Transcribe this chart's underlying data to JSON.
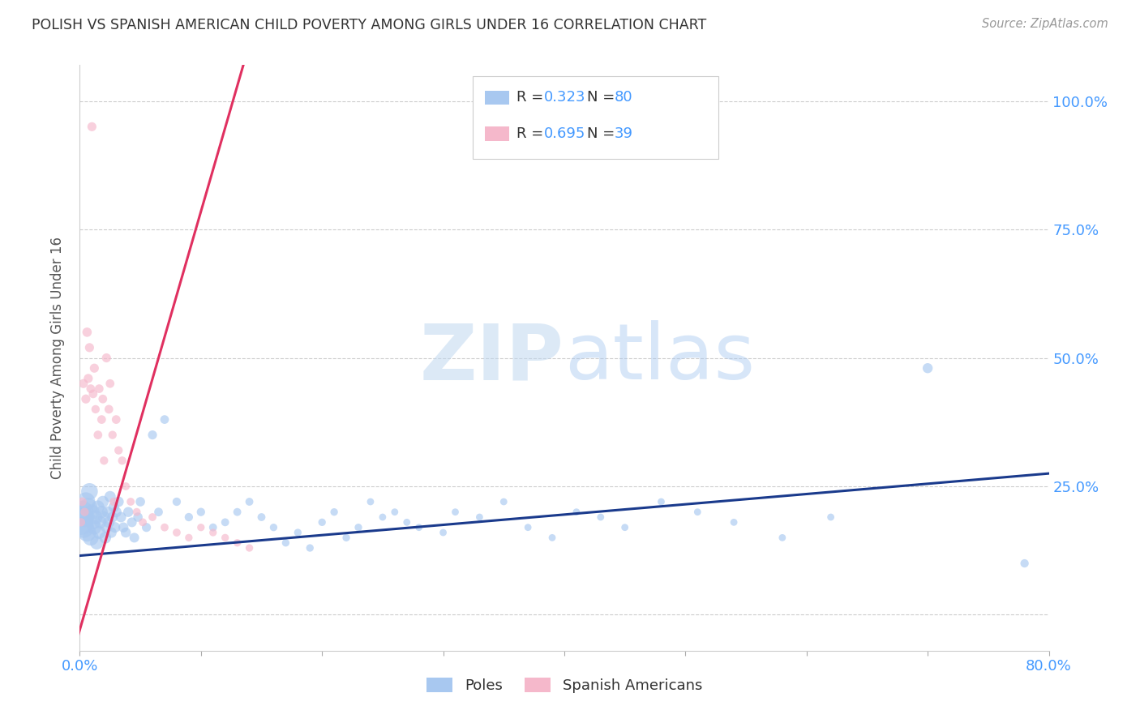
{
  "title": "POLISH VS SPANISH AMERICAN CHILD POVERTY AMONG GIRLS UNDER 16 CORRELATION CHART",
  "source": "Source: ZipAtlas.com",
  "ylabel_label": "Child Poverty Among Girls Under 16",
  "poles_R": "0.323",
  "poles_N": "80",
  "spanish_R": "0.695",
  "spanish_N": "39",
  "poles_color": "#a8c8f0",
  "poles_line_color": "#1a3a8c",
  "spanish_color": "#f5b8cb",
  "spanish_line_color": "#e03060",
  "watermark_zip": "ZIP",
  "watermark_atlas": "atlas",
  "background_color": "#ffffff",
  "xlim": [
    0.0,
    0.8
  ],
  "ylim": [
    -0.07,
    1.07
  ],
  "poles_trend_x": [
    0.0,
    0.8
  ],
  "poles_trend_y": [
    0.115,
    0.275
  ],
  "spanish_trend_x": [
    -0.005,
    0.135
  ],
  "spanish_trend_y": [
    -0.07,
    1.07
  ],
  "poles_scatter_x": [
    0.001,
    0.002,
    0.003,
    0.004,
    0.005,
    0.006,
    0.007,
    0.008,
    0.009,
    0.01,
    0.011,
    0.012,
    0.013,
    0.014,
    0.015,
    0.016,
    0.017,
    0.018,
    0.019,
    0.02,
    0.021,
    0.022,
    0.023,
    0.024,
    0.025,
    0.026,
    0.027,
    0.028,
    0.029,
    0.03,
    0.032,
    0.034,
    0.036,
    0.038,
    0.04,
    0.043,
    0.045,
    0.048,
    0.05,
    0.055,
    0.06,
    0.065,
    0.07,
    0.08,
    0.09,
    0.1,
    0.11,
    0.12,
    0.13,
    0.14,
    0.15,
    0.16,
    0.17,
    0.18,
    0.19,
    0.2,
    0.21,
    0.22,
    0.23,
    0.24,
    0.25,
    0.26,
    0.27,
    0.28,
    0.3,
    0.31,
    0.33,
    0.35,
    0.37,
    0.39,
    0.41,
    0.43,
    0.45,
    0.48,
    0.51,
    0.54,
    0.58,
    0.62,
    0.7,
    0.78
  ],
  "poles_scatter_y": [
    0.18,
    0.2,
    0.17,
    0.19,
    0.22,
    0.16,
    0.21,
    0.24,
    0.15,
    0.2,
    0.18,
    0.17,
    0.19,
    0.14,
    0.21,
    0.16,
    0.18,
    0.2,
    0.22,
    0.19,
    0.15,
    0.17,
    0.2,
    0.18,
    0.23,
    0.16,
    0.19,
    0.21,
    0.17,
    0.2,
    0.22,
    0.19,
    0.17,
    0.16,
    0.2,
    0.18,
    0.15,
    0.19,
    0.22,
    0.17,
    0.35,
    0.2,
    0.38,
    0.22,
    0.19,
    0.2,
    0.17,
    0.18,
    0.2,
    0.22,
    0.19,
    0.17,
    0.14,
    0.16,
    0.13,
    0.18,
    0.2,
    0.15,
    0.17,
    0.22,
    0.19,
    0.2,
    0.18,
    0.17,
    0.16,
    0.2,
    0.19,
    0.22,
    0.17,
    0.15,
    0.2,
    0.19,
    0.17,
    0.22,
    0.2,
    0.18,
    0.15,
    0.19,
    0.48,
    0.1
  ],
  "poles_scatter_sizes": [
    500,
    400,
    350,
    300,
    280,
    260,
    250,
    220,
    200,
    180,
    170,
    160,
    150,
    140,
    130,
    130,
    120,
    120,
    110,
    110,
    110,
    100,
    100,
    100,
    100,
    90,
    90,
    90,
    90,
    90,
    85,
    85,
    80,
    80,
    80,
    75,
    75,
    70,
    70,
    65,
    65,
    60,
    60,
    55,
    55,
    55,
    50,
    50,
    50,
    50,
    50,
    45,
    45,
    45,
    45,
    45,
    45,
    45,
    45,
    40,
    40,
    40,
    40,
    40,
    40,
    40,
    40,
    40,
    40,
    40,
    40,
    40,
    40,
    40,
    40,
    40,
    40,
    40,
    80,
    55
  ],
  "spanish_scatter_x": [
    0.001,
    0.002,
    0.003,
    0.004,
    0.005,
    0.006,
    0.007,
    0.008,
    0.009,
    0.01,
    0.011,
    0.012,
    0.013,
    0.015,
    0.016,
    0.018,
    0.019,
    0.02,
    0.022,
    0.024,
    0.025,
    0.027,
    0.028,
    0.03,
    0.032,
    0.035,
    0.038,
    0.042,
    0.047,
    0.052,
    0.06,
    0.07,
    0.08,
    0.09,
    0.1,
    0.11,
    0.12,
    0.13,
    0.14
  ],
  "spanish_scatter_y": [
    0.18,
    0.22,
    0.45,
    0.2,
    0.42,
    0.55,
    0.46,
    0.52,
    0.44,
    0.95,
    0.43,
    0.48,
    0.4,
    0.35,
    0.44,
    0.38,
    0.42,
    0.3,
    0.5,
    0.4,
    0.45,
    0.35,
    0.22,
    0.38,
    0.32,
    0.3,
    0.25,
    0.22,
    0.2,
    0.18,
    0.19,
    0.17,
    0.16,
    0.15,
    0.17,
    0.16,
    0.15,
    0.14,
    0.13
  ],
  "spanish_scatter_sizes": [
    55,
    60,
    65,
    55,
    65,
    70,
    65,
    65,
    60,
    65,
    60,
    65,
    55,
    60,
    60,
    60,
    60,
    55,
    65,
    60,
    60,
    55,
    55,
    60,
    55,
    55,
    50,
    50,
    50,
    50,
    50,
    50,
    50,
    45,
    45,
    45,
    45,
    45,
    45
  ]
}
